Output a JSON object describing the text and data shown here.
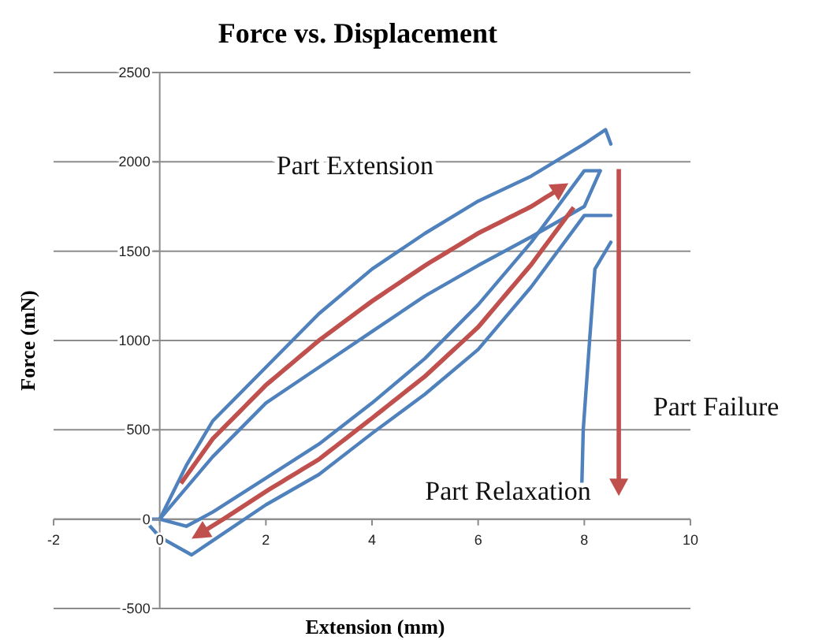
{
  "chart_data": {
    "type": "line",
    "title": "Force vs. Displacement",
    "xlabel": "Extension (mm)",
    "ylabel": "Force (mN)",
    "xlim": [
      -2,
      10
    ],
    "xticks": [
      -2,
      0,
      2,
      4,
      6,
      8,
      10
    ],
    "ylim": [
      -500,
      2500
    ],
    "yticks": [
      -500,
      0,
      500,
      1000,
      1500,
      2000,
      2500
    ],
    "grid": "y",
    "line_style": "solid",
    "marker": "none",
    "series": [
      {
        "color": "#4f81bd",
        "x": [
          -0.3,
          0,
          0.5,
          1,
          2,
          3,
          4,
          5,
          6,
          7,
          8,
          8.4,
          8.5
        ],
        "values": [
          0,
          0,
          300,
          550,
          850,
          1150,
          1400,
          1600,
          1780,
          1920,
          2100,
          2180,
          2100
        ]
      },
      {
        "color": "#4f81bd",
        "x": [
          -0.3,
          0,
          0.6,
          1,
          2,
          3,
          4,
          5,
          6,
          7,
          8,
          8.5
        ],
        "values": [
          0,
          -100,
          -200,
          -120,
          80,
          250,
          480,
          700,
          950,
          1300,
          1700,
          1700
        ]
      },
      {
        "color": "#4f81bd",
        "x": [
          0,
          1,
          2,
          3,
          4,
          5,
          6,
          7,
          8,
          8.3
        ],
        "values": [
          0,
          350,
          650,
          850,
          1050,
          1250,
          1420,
          1580,
          1750,
          1950
        ]
      },
      {
        "color": "#4f81bd",
        "x": [
          0,
          0.5,
          1,
          2,
          3,
          4,
          5,
          6,
          7,
          8,
          8.3
        ],
        "values": [
          0,
          -40,
          40,
          230,
          420,
          650,
          900,
          1200,
          1550,
          1950,
          1950
        ]
      },
      {
        "color": "#4f81bd",
        "x": [
          7.95,
          7.98,
          8.1,
          8.2,
          8.5
        ],
        "values": [
          150,
          500,
          1000,
          1400,
          1550
        ]
      }
    ],
    "annotations": [
      "Part Extension",
      "Part Relaxation",
      "Part Failure"
    ]
  }
}
